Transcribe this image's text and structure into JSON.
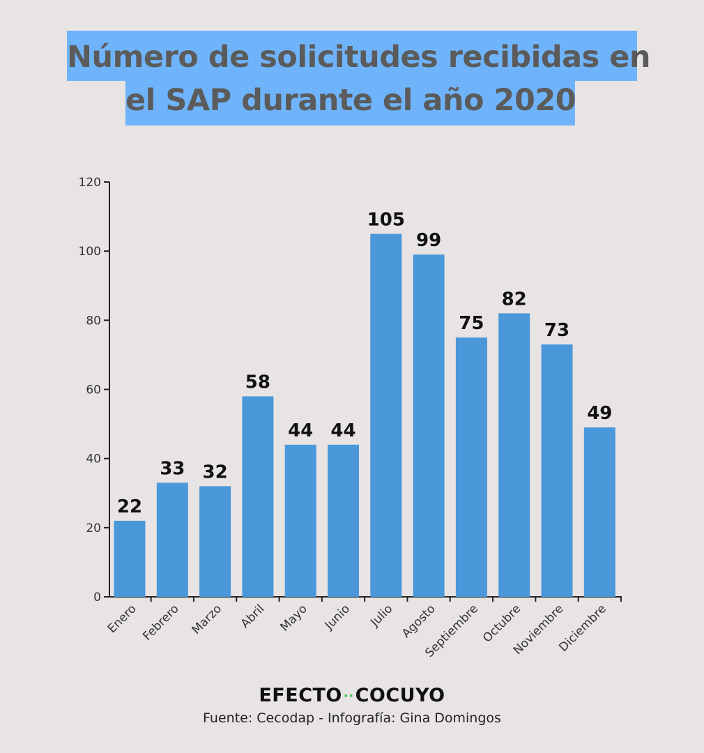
{
  "title": {
    "line1": "Número de solicitudes recibidas en",
    "line2": "el SAP durante el año 2020"
  },
  "chart_data": {
    "type": "bar",
    "categories": [
      "Enero",
      "Febrero",
      "Marzo",
      "Abril",
      "Mayo",
      "Junio",
      "Julio",
      "Agosto",
      "Septiembre",
      "Octubre",
      "Noviembre",
      "Diciembre"
    ],
    "values": [
      22,
      33,
      32,
      58,
      44,
      44,
      105,
      99,
      75,
      82,
      73,
      49
    ],
    "ylim": [
      0,
      120
    ],
    "yticks": [
      0,
      20,
      40,
      60,
      80,
      100,
      120
    ],
    "bar_color": "#4a97da",
    "grid": false,
    "data_labels": true
  },
  "branding": {
    "logo_left": "EFECTO",
    "logo_right": "COCUYO",
    "logo_accent_color": "#3ac24f",
    "credit": "Fuente: Cecodap - Infografía: Gina Domingos"
  }
}
